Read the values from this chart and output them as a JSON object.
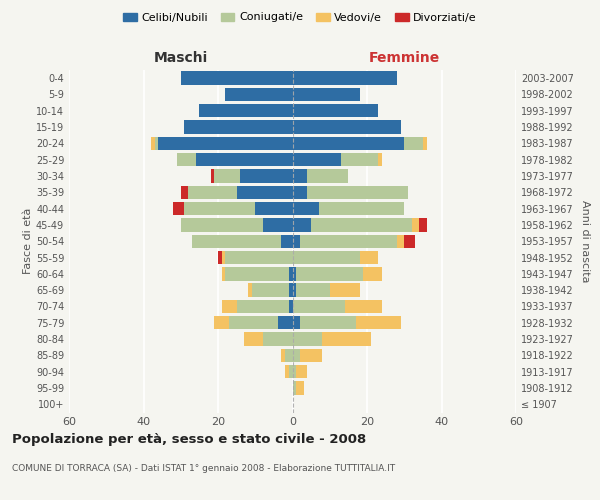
{
  "age_groups": [
    "100+",
    "95-99",
    "90-94",
    "85-89",
    "80-84",
    "75-79",
    "70-74",
    "65-69",
    "60-64",
    "55-59",
    "50-54",
    "45-49",
    "40-44",
    "35-39",
    "30-34",
    "25-29",
    "20-24",
    "15-19",
    "10-14",
    "5-9",
    "0-4"
  ],
  "birth_years": [
    "≤ 1907",
    "1908-1912",
    "1913-1917",
    "1918-1922",
    "1923-1927",
    "1928-1932",
    "1933-1937",
    "1938-1942",
    "1943-1947",
    "1948-1952",
    "1953-1957",
    "1958-1962",
    "1963-1967",
    "1968-1972",
    "1973-1977",
    "1978-1982",
    "1983-1987",
    "1988-1992",
    "1993-1997",
    "1998-2002",
    "2003-2007"
  ],
  "male": {
    "celibi": [
      0,
      0,
      0,
      0,
      0,
      4,
      1,
      1,
      1,
      0,
      3,
      8,
      10,
      15,
      14,
      26,
      36,
      29,
      25,
      18,
      30
    ],
    "coniugati": [
      0,
      0,
      1,
      2,
      8,
      13,
      14,
      10,
      17,
      18,
      24,
      22,
      19,
      13,
      7,
      5,
      1,
      0,
      0,
      0,
      0
    ],
    "vedovi": [
      0,
      0,
      1,
      1,
      5,
      4,
      4,
      1,
      1,
      1,
      0,
      0,
      0,
      0,
      0,
      0,
      1,
      0,
      0,
      0,
      0
    ],
    "divorziati": [
      0,
      0,
      0,
      0,
      0,
      0,
      0,
      0,
      0,
      1,
      0,
      0,
      3,
      2,
      1,
      0,
      0,
      0,
      0,
      0,
      0
    ]
  },
  "female": {
    "nubili": [
      0,
      0,
      0,
      0,
      0,
      2,
      0,
      1,
      1,
      0,
      2,
      5,
      7,
      4,
      4,
      13,
      30,
      29,
      23,
      18,
      28
    ],
    "coniugate": [
      0,
      1,
      1,
      2,
      8,
      15,
      14,
      9,
      18,
      18,
      26,
      27,
      23,
      27,
      11,
      10,
      5,
      0,
      0,
      0,
      0
    ],
    "vedove": [
      0,
      2,
      3,
      6,
      13,
      12,
      10,
      8,
      5,
      5,
      2,
      2,
      0,
      0,
      0,
      1,
      1,
      0,
      0,
      0,
      0
    ],
    "divorziate": [
      0,
      0,
      0,
      0,
      0,
      0,
      0,
      0,
      0,
      0,
      3,
      2,
      0,
      0,
      0,
      0,
      0,
      0,
      0,
      0,
      0
    ]
  },
  "colors": {
    "celibi": "#2e6da4",
    "coniugati": "#b5c99a",
    "vedovi": "#f4c262",
    "divorziati": "#cc2929"
  },
  "legend_labels": [
    "Celibi/Nubili",
    "Coniugati/e",
    "Vedovi/e",
    "Divorziati/e"
  ],
  "title": "Popolazione per età, sesso e stato civile - 2008",
  "subtitle": "COMUNE DI TORRACA (SA) - Dati ISTAT 1° gennaio 2008 - Elaborazione TUTTITALIA.IT",
  "ylabel_left": "Fasce di età",
  "ylabel_right": "Anni di nascita",
  "xlabel_left": "Maschi",
  "xlabel_right": "Femmine",
  "xlim": 60,
  "background_color": "#f5f5f0"
}
